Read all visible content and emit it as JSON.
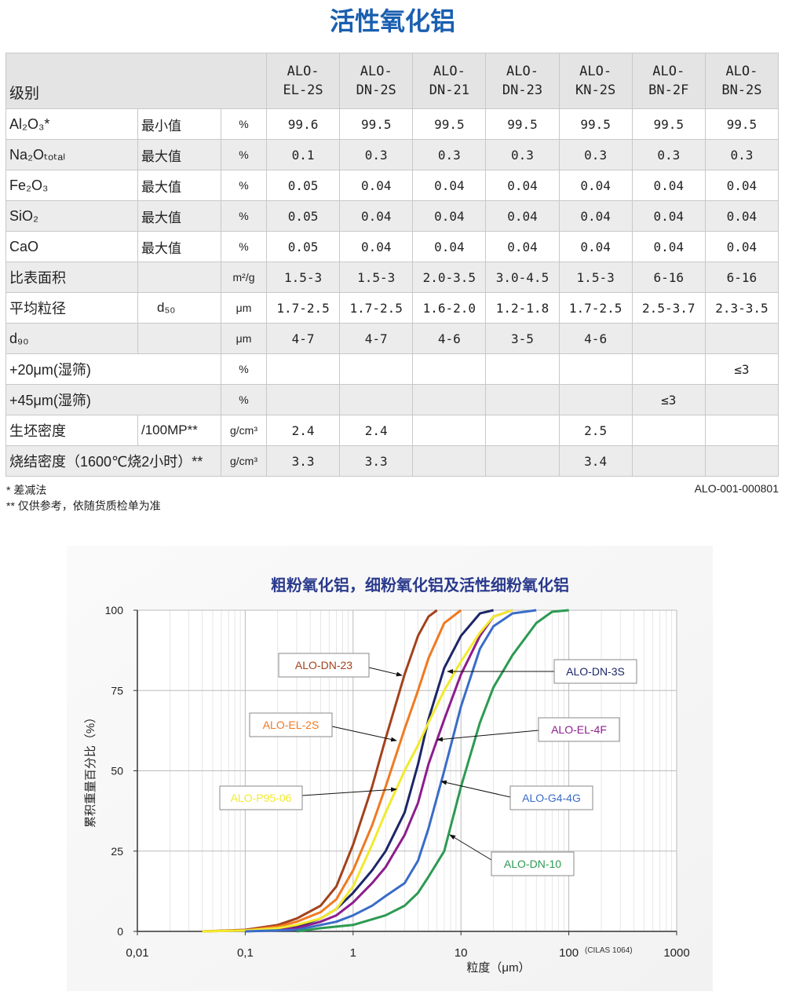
{
  "header": {
    "title": "活性氧化铝"
  },
  "table": {
    "columns": [
      "级别",
      "ALO-\nEL-2S",
      "ALO-\nDN-2S",
      "ALO-\nDN-21",
      "ALO-\nDN-23",
      "ALO-\nKN-2S",
      "ALO-\nBN-2F",
      "ALO-\nBN-2S"
    ],
    "rows": [
      [
        "Al₂O₃*",
        "最小值",
        "%",
        "99.6",
        "99.5",
        "99.5",
        "99.5",
        "99.5",
        "99.5",
        "99.5"
      ],
      [
        "Na₂Oₜₒₜₐₗ",
        "最大值",
        "%",
        "0.1",
        "0.3",
        "0.3",
        "0.3",
        "0.3",
        "0.3",
        "0.3"
      ],
      [
        "Fe₂O₃",
        "最大值",
        "%",
        "0.05",
        "0.04",
        "0.04",
        "0.04",
        "0.04",
        "0.04",
        "0.04"
      ],
      [
        "SiO₂",
        "最大值",
        "%",
        "0.05",
        "0.04",
        "0.04",
        "0.04",
        "0.04",
        "0.04",
        "0.04"
      ],
      [
        "CaO",
        "最大值",
        "%",
        "0.05",
        "0.04",
        "0.04",
        "0.04",
        "0.04",
        "0.04",
        "0.04"
      ],
      [
        "比表面积",
        null,
        "m²/g",
        "1.5-3",
        "1.5-3",
        "2.0-3.5",
        "3.0-4.5",
        "1.5-3",
        "6-16",
        "6-16"
      ],
      [
        "平均粒径",
        "d₅₀",
        "μm",
        "1.7-2.5",
        "1.7-2.5",
        "1.6-2.0",
        "1.2-1.8",
        "1.7-2.5",
        "2.5-3.7",
        "2.3-3.5"
      ],
      [
        "d₉₀",
        null,
        "μm",
        "4-7",
        "4-7",
        "4-6",
        "3-5",
        "4-6",
        null,
        null
      ],
      [
        "+20μm(湿筛)",
        null,
        "%",
        null,
        null,
        null,
        null,
        null,
        null,
        "≤3"
      ],
      [
        "+45μm(湿筛)",
        null,
        "%",
        null,
        null,
        null,
        null,
        null,
        "≤3",
        null
      ],
      [
        "生坯密度",
        "/100MP**",
        "g/cm³",
        "2.4",
        "2.4",
        null,
        null,
        "2.5",
        null,
        null
      ],
      [
        "烧结密度（1600℃烧2小时）**",
        null,
        "g/cm³",
        "3.3",
        "3.3",
        null,
        null,
        "3.4",
        null,
        null
      ]
    ]
  },
  "footnotes": [
    "* 差减法",
    "** 仅供参考，依随货质检单为准"
  ],
  "document_code": "ALO-001-000801",
  "chart_data": {
    "type": "line",
    "title": "粗粉氧化铝，细粉氧化铝及活性细粉氧化铝",
    "x_label": "粒度（μm）",
    "y_label": "累积重量百分比（%）",
    "annotation": "(CILAS 1064)",
    "x_scale": "log",
    "grid": true,
    "xlim": [
      0.01,
      1000
    ],
    "xticks": [
      {
        "value": 0.01,
        "label": "0,01"
      },
      {
        "value": 0.1,
        "label": "0,1"
      },
      1,
      10,
      100,
      1000
    ],
    "ylim": [
      0,
      100
    ],
    "yticks": [
      0,
      25,
      50,
      75,
      100
    ],
    "series": [
      {
        "name": "ALO-DN-23",
        "color": "#a3421c",
        "x": [
          0.04,
          0.1,
          0.2,
          0.3,
          0.5,
          0.7,
          1,
          1.5,
          2,
          3,
          4,
          5,
          6
        ],
        "values": [
          0,
          0.5,
          2,
          4,
          8,
          14,
          27,
          45,
          60,
          80,
          92,
          98,
          100
        ]
      },
      {
        "name": "ALO-DN-3S",
        "color": "#1c2668",
        "x": [
          0.1,
          0.3,
          0.5,
          0.7,
          1,
          1.5,
          2,
          3,
          4,
          5,
          7,
          10,
          15,
          20
        ],
        "values": [
          0.2,
          1.5,
          4,
          7,
          12,
          19,
          25,
          37,
          52,
          66,
          82,
          92,
          99,
          100
        ]
      },
      {
        "name": "ALO-EL-2S",
        "color": "#f07a22",
        "x": [
          0.04,
          0.1,
          0.2,
          0.3,
          0.5,
          0.7,
          1,
          1.5,
          2,
          3,
          4,
          5,
          7,
          10
        ],
        "values": [
          0,
          0.3,
          1.5,
          3,
          6,
          10,
          19,
          33,
          45,
          63,
          75,
          85,
          96,
          100
        ]
      },
      {
        "name": "ALO-EL-4F",
        "color": "#8c1e8c",
        "x": [
          0.1,
          0.3,
          0.5,
          0.7,
          1,
          1.5,
          2,
          3,
          4,
          5,
          7,
          10,
          15,
          20,
          30
        ],
        "values": [
          0.2,
          1,
          3,
          5,
          9,
          15,
          20,
          30,
          40,
          52,
          66,
          80,
          92,
          98,
          100
        ]
      },
      {
        "name": "ALO-P95-06",
        "color": "#f2ea2e",
        "x": [
          0.04,
          0.1,
          0.2,
          0.3,
          0.5,
          0.7,
          1,
          1.5,
          2,
          3,
          4,
          5,
          7,
          10,
          15,
          20,
          30
        ],
        "values": [
          0,
          0.3,
          1,
          2,
          4,
          7,
          14,
          27,
          37,
          50,
          58,
          65,
          75,
          84,
          93,
          98,
          100
        ]
      },
      {
        "name": "ALO-G4-4G",
        "color": "#3a6cc8",
        "x": [
          0.1,
          0.3,
          0.5,
          0.7,
          1,
          1.5,
          2,
          3,
          4,
          5,
          7,
          10,
          15,
          20,
          30,
          50
        ],
        "values": [
          0,
          0.5,
          2,
          3,
          5,
          8,
          11,
          15,
          22,
          32,
          50,
          70,
          88,
          95,
          99,
          100
        ]
      },
      {
        "name": "ALO-DN-10",
        "color": "#2c9a52",
        "x": [
          0.3,
          0.5,
          1,
          2,
          3,
          4,
          5,
          7,
          10,
          15,
          20,
          30,
          50,
          70,
          100
        ],
        "values": [
          0,
          1,
          2,
          5,
          8,
          12,
          17,
          25,
          45,
          65,
          76,
          86,
          96,
          99.5,
          100
        ]
      }
    ]
  }
}
